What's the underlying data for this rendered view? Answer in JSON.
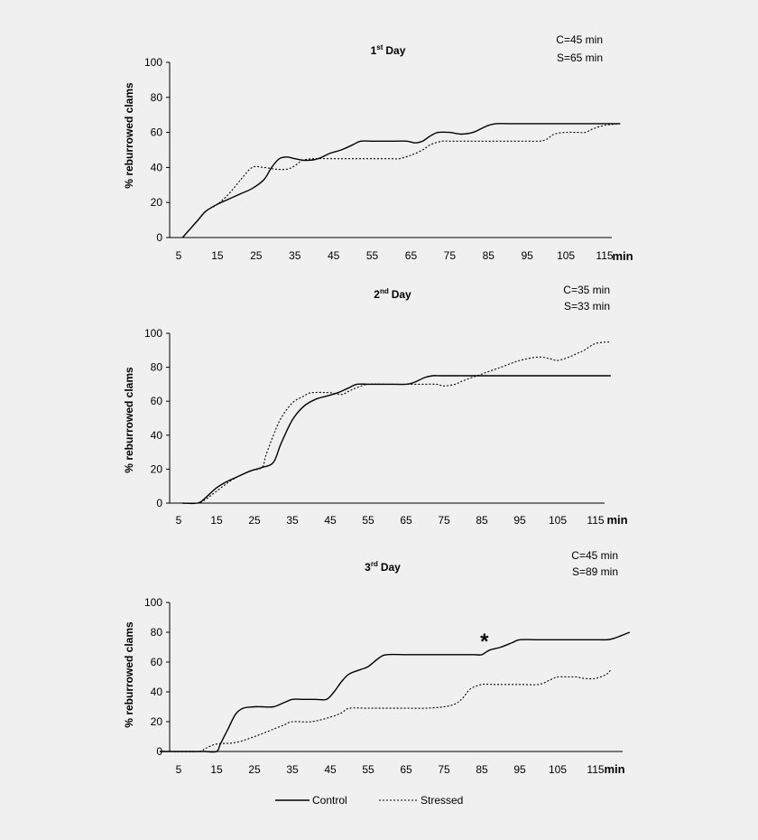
{
  "chart_data": [
    {
      "type": "line",
      "title": "Day",
      "title_num": "1",
      "title_sup": "st",
      "annotations": [
        "C=45 min",
        "S=65 min"
      ],
      "xlabel": "min",
      "ylabel": "% reburrowed clams",
      "xticks": [
        5,
        15,
        25,
        35,
        45,
        55,
        65,
        75,
        85,
        95,
        105,
        115
      ],
      "yticks": [
        0,
        20,
        40,
        60,
        80,
        100
      ],
      "xlim": [
        1,
        121
      ],
      "ylim": [
        0,
        100
      ],
      "star_x": null,
      "series": [
        {
          "name": "Control",
          "x": [
            6,
            8,
            10,
            12,
            15,
            18,
            21,
            24,
            27,
            29,
            31,
            33,
            35,
            38,
            41,
            44,
            47,
            50,
            52,
            55,
            58,
            61,
            64,
            66,
            68,
            70,
            72,
            75,
            78,
            81,
            83,
            85,
            87,
            90,
            95,
            100,
            105,
            110,
            115,
            119
          ],
          "y": [
            0,
            5,
            10,
            15,
            19,
            22,
            25,
            28,
            33,
            40,
            45,
            46,
            45,
            44,
            45,
            48,
            50,
            53,
            55,
            55,
            55,
            55,
            55,
            54,
            55,
            58,
            60,
            60,
            59,
            60,
            62,
            64,
            65,
            65,
            65,
            65,
            65,
            65,
            65,
            65
          ]
        },
        {
          "name": "Stressed",
          "x": [
            6,
            8,
            10,
            12,
            15,
            18,
            21,
            24,
            27,
            30,
            33,
            35,
            37,
            40,
            45,
            50,
            55,
            60,
            62,
            65,
            68,
            70,
            73,
            75,
            80,
            85,
            90,
            95,
            98,
            100,
            102,
            105,
            108,
            110,
            112,
            115,
            119
          ],
          "y": [
            0,
            5,
            10,
            15,
            19,
            25,
            33,
            40,
            40,
            39,
            39,
            41,
            44,
            45,
            45,
            45,
            45,
            45,
            45,
            47,
            50,
            53,
            55,
            55,
            55,
            55,
            55,
            55,
            55,
            56,
            59,
            60,
            60,
            60,
            62,
            64,
            65
          ]
        }
      ]
    },
    {
      "type": "line",
      "title": "Day",
      "title_num": "2",
      "title_sup": "nd",
      "annotations": [
        "C=35 min",
        "S=33 min"
      ],
      "xlabel": "min",
      "ylabel": "% reburrowed clams",
      "xticks": [
        5,
        15,
        25,
        35,
        45,
        55,
        65,
        75,
        85,
        95,
        105,
        115
      ],
      "yticks": [
        0,
        20,
        40,
        60,
        80,
        100
      ],
      "xlim": [
        1,
        120
      ],
      "ylim": [
        0,
        100
      ],
      "star_x": null,
      "series": [
        {
          "name": "Control",
          "x": [
            6,
            10,
            12,
            15,
            18,
            21,
            24,
            27,
            30,
            32,
            35,
            38,
            41,
            44,
            47,
            50,
            52,
            55,
            60,
            65,
            67,
            70,
            72,
            74,
            76,
            80,
            85,
            90,
            95,
            100,
            105,
            110,
            115,
            119
          ],
          "y": [
            0,
            0,
            3,
            9,
            13,
            16,
            19,
            21,
            24,
            35,
            49,
            57,
            61,
            63,
            65,
            68,
            70,
            70,
            70,
            70,
            71,
            74,
            75,
            75,
            75,
            75,
            75,
            75,
            75,
            75,
            75,
            75,
            75,
            75
          ]
        },
        {
          "name": "Stressed",
          "x": [
            6,
            10,
            12,
            15,
            18,
            21,
            24,
            27,
            28,
            30,
            32,
            35,
            38,
            40,
            45,
            48,
            50,
            52,
            55,
            60,
            65,
            70,
            73,
            75,
            78,
            80,
            85,
            90,
            95,
            100,
            103,
            105,
            108,
            110,
            112,
            115,
            119
          ],
          "y": [
            0,
            0,
            2,
            7,
            12,
            16,
            19,
            21,
            28,
            40,
            50,
            59,
            63,
            65,
            65,
            64,
            66,
            68,
            70,
            70,
            70,
            70,
            70,
            69,
            70,
            72,
            76,
            80,
            84,
            86,
            85,
            84,
            86,
            88,
            90,
            94,
            95
          ]
        }
      ]
    },
    {
      "type": "line",
      "title": "Day",
      "title_num": "3",
      "title_sup": "rd",
      "annotations": [
        "C=45 min",
        "S=89 min"
      ],
      "xlabel": "min",
      "ylabel": "% reburrowed clams",
      "xticks": [
        5,
        15,
        25,
        35,
        45,
        55,
        65,
        75,
        85,
        95,
        105,
        115
      ],
      "yticks": [
        0,
        20,
        40,
        60,
        80,
        100
      ],
      "xlim": [
        1,
        121
      ],
      "ylim": [
        0,
        100
      ],
      "star_x": 84,
      "series": [
        {
          "name": "Control",
          "x": [
            0,
            10,
            12,
            15,
            16,
            18,
            20,
            22,
            25,
            27,
            30,
            33,
            35,
            38,
            41,
            44,
            46,
            48,
            50,
            53,
            55,
            58,
            60,
            65,
            70,
            75,
            80,
            83,
            85,
            87,
            90,
            93,
            95,
            100,
            105,
            110,
            115,
            118,
            120,
            124
          ],
          "y": [
            0,
            0,
            0,
            0,
            5,
            15,
            25,
            29,
            30,
            30,
            30,
            33,
            35,
            35,
            35,
            35,
            40,
            47,
            52,
            55,
            57,
            63,
            65,
            65,
            65,
            65,
            65,
            65,
            65,
            68,
            70,
            73,
            75,
            75,
            75,
            75,
            75,
            75,
            76,
            80
          ]
        },
        {
          "name": "Stressed",
          "x": [
            0,
            10,
            12,
            15,
            20,
            25,
            30,
            33,
            35,
            40,
            45,
            48,
            50,
            55,
            60,
            65,
            70,
            75,
            78,
            80,
            82,
            85,
            88,
            90,
            95,
            100,
            103,
            105,
            108,
            110,
            112,
            115,
            118,
            119
          ],
          "y": [
            0,
            0,
            2,
            5,
            6,
            10,
            15,
            18,
            20,
            20,
            23,
            26,
            29,
            29,
            29,
            29,
            29,
            30,
            32,
            36,
            42,
            45,
            45,
            45,
            45,
            45,
            48,
            50,
            50,
            50,
            49,
            49,
            52,
            55
          ]
        }
      ]
    }
  ],
  "legend": [
    {
      "name": "Control",
      "style": "solid"
    },
    {
      "name": "Stressed",
      "style": "dotted"
    }
  ],
  "colors": {
    "background": "#f0f0f0",
    "ink": "#000000"
  }
}
